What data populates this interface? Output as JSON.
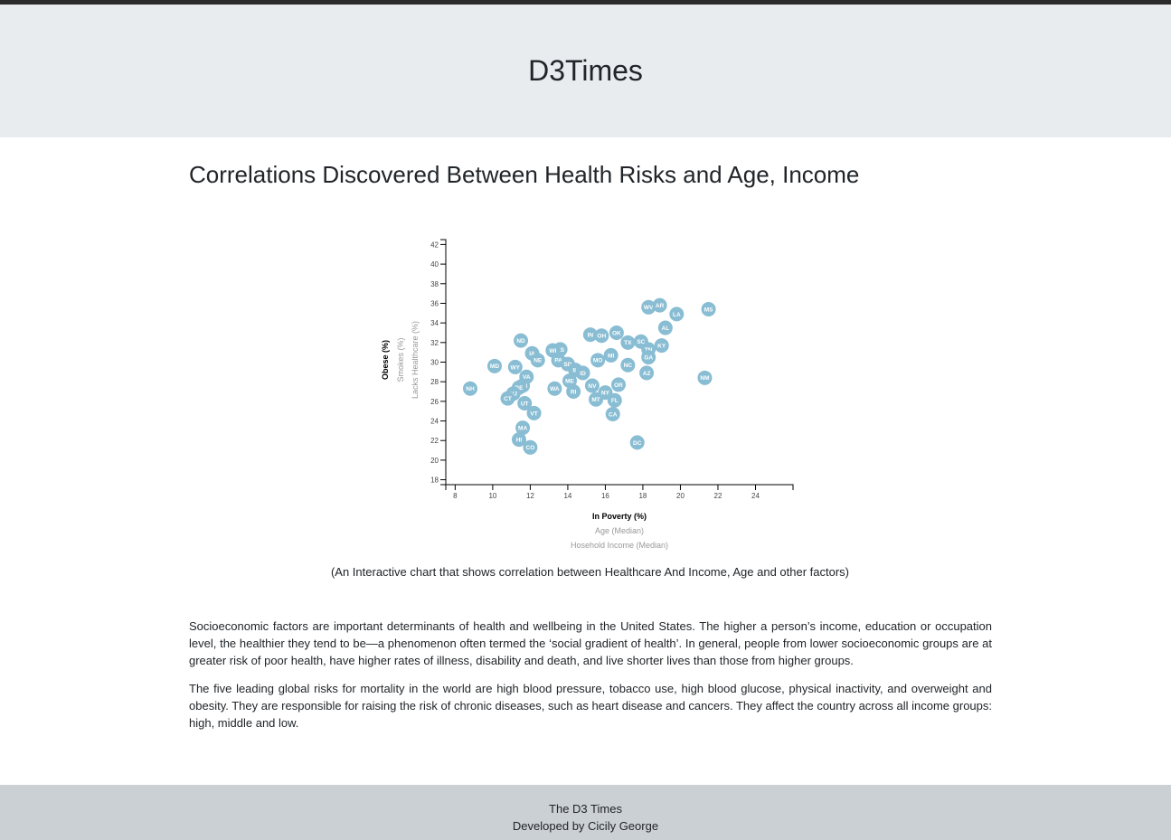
{
  "header": {
    "title": "D3Times"
  },
  "main": {
    "heading": "Correlations Discovered Between Health Risks and Age, Income",
    "caption": "(An Interactive chart that shows correlation between Healthcare And Income, Age and other factors)",
    "paragraphs": [
      "Socioeconomic factors are important determinants of health and wellbeing in the United States. The higher a person’s income, education or occupation level, the healthier they tend to be—a phenomenon often termed the ‘social gradient of health’. In general, people from lower socioeconomic groups are at greater risk of poor health, have higher rates of illness, disability and death, and live shorter lives than those from higher groups.",
      "The five leading global risks for mortality in the world are high blood pressure, tobacco use, high blood glucose, physical inactivity, and overweight and obesity. They are responsible for raising the risk of chronic diseases, such as heart disease and cancers. They affect the country across all income groups: high, middle and low."
    ]
  },
  "footer": {
    "line1": "The D3 Times",
    "line2": "Developed by Cicily George"
  },
  "colors": {
    "marker": "#89bdd3",
    "active_label": "#000000",
    "inactive_label": "#999999"
  },
  "chart_data": {
    "type": "scatter",
    "xlim": [
      7.5,
      26
    ],
    "ylim": [
      17.5,
      42.5
    ],
    "x_ticks": [
      8,
      10,
      12,
      14,
      16,
      18,
      20,
      22,
      24
    ],
    "y_ticks": [
      18,
      20,
      22,
      24,
      26,
      28,
      30,
      32,
      34,
      36,
      38,
      40,
      42
    ],
    "x_labels": [
      {
        "text": "In Poverty (%)",
        "active": true
      },
      {
        "text": "Age (Median)",
        "active": false
      },
      {
        "text": "Hosehold Income (Median)",
        "active": false
      }
    ],
    "y_labels": [
      {
        "text": "Obese (%)",
        "active": true
      },
      {
        "text": "Smokes (%)",
        "active": false
      },
      {
        "text": "Lacks Healthcare (%)",
        "active": false
      }
    ],
    "points": [
      {
        "state": "WV",
        "x": 18.3,
        "y": 35.6
      },
      {
        "state": "AR",
        "x": 18.9,
        "y": 35.8
      },
      {
        "state": "MS",
        "x": 21.5,
        "y": 35.4
      },
      {
        "state": "LA",
        "x": 19.8,
        "y": 34.9
      },
      {
        "state": "AL",
        "x": 19.2,
        "y": 33.5
      },
      {
        "state": "OK",
        "x": 16.6,
        "y": 33.0
      },
      {
        "state": "IN",
        "x": 15.2,
        "y": 32.8
      },
      {
        "state": "OH",
        "x": 15.8,
        "y": 32.7
      },
      {
        "state": "ND",
        "x": 11.5,
        "y": 32.2
      },
      {
        "state": "TX",
        "x": 17.2,
        "y": 32.0
      },
      {
        "state": "SC",
        "x": 17.9,
        "y": 32.1
      },
      {
        "state": "KY",
        "x": 19.0,
        "y": 31.7
      },
      {
        "state": "TN",
        "x": 18.3,
        "y": 31.3
      },
      {
        "state": "KS",
        "x": 13.6,
        "y": 31.3
      },
      {
        "state": "WI",
        "x": 13.2,
        "y": 31.2
      },
      {
        "state": "IA",
        "x": 12.1,
        "y": 30.9
      },
      {
        "state": "MI",
        "x": 16.3,
        "y": 30.7
      },
      {
        "state": "GA",
        "x": 18.3,
        "y": 30.5
      },
      {
        "state": "NE",
        "x": 12.4,
        "y": 30.2
      },
      {
        "state": "PA",
        "x": 13.5,
        "y": 30.2
      },
      {
        "state": "MO",
        "x": 15.6,
        "y": 30.2
      },
      {
        "state": "MD",
        "x": 10.1,
        "y": 29.6
      },
      {
        "state": "WY",
        "x": 11.2,
        "y": 29.5
      },
      {
        "state": "SD",
        "x": 14.0,
        "y": 29.8
      },
      {
        "state": "NC",
        "x": 17.2,
        "y": 29.7
      },
      {
        "state": "IL",
        "x": 14.4,
        "y": 29.2
      },
      {
        "state": "ID",
        "x": 14.8,
        "y": 28.9
      },
      {
        "state": "AZ",
        "x": 18.2,
        "y": 28.9
      },
      {
        "state": "VA",
        "x": 11.8,
        "y": 28.5
      },
      {
        "state": "NM",
        "x": 21.3,
        "y": 28.4
      },
      {
        "state": "ME",
        "x": 14.1,
        "y": 28.1
      },
      {
        "state": "OR",
        "x": 16.7,
        "y": 27.7
      },
      {
        "state": "MN",
        "x": 11.6,
        "y": 27.6
      },
      {
        "state": "NV",
        "x": 15.3,
        "y": 27.6
      },
      {
        "state": "WA",
        "x": 13.3,
        "y": 27.3
      },
      {
        "state": "NH",
        "x": 8.8,
        "y": 27.3
      },
      {
        "state": "DE",
        "x": 11.4,
        "y": 27.4
      },
      {
        "state": "RI",
        "x": 14.3,
        "y": 27.0
      },
      {
        "state": "NY",
        "x": 16.0,
        "y": 26.9
      },
      {
        "state": "NJ",
        "x": 11.1,
        "y": 26.8
      },
      {
        "state": "CT",
        "x": 10.8,
        "y": 26.3
      },
      {
        "state": "MT",
        "x": 15.5,
        "y": 26.2
      },
      {
        "state": "FL",
        "x": 16.5,
        "y": 26.1
      },
      {
        "state": "UT",
        "x": 11.7,
        "y": 25.8
      },
      {
        "state": "VT",
        "x": 12.2,
        "y": 24.8
      },
      {
        "state": "CA",
        "x": 16.4,
        "y": 24.7
      },
      {
        "state": "MA",
        "x": 11.6,
        "y": 23.3
      },
      {
        "state": "HI",
        "x": 11.4,
        "y": 22.1
      },
      {
        "state": "DC",
        "x": 17.7,
        "y": 21.8
      },
      {
        "state": "CO",
        "x": 12.0,
        "y": 21.3
      }
    ]
  }
}
